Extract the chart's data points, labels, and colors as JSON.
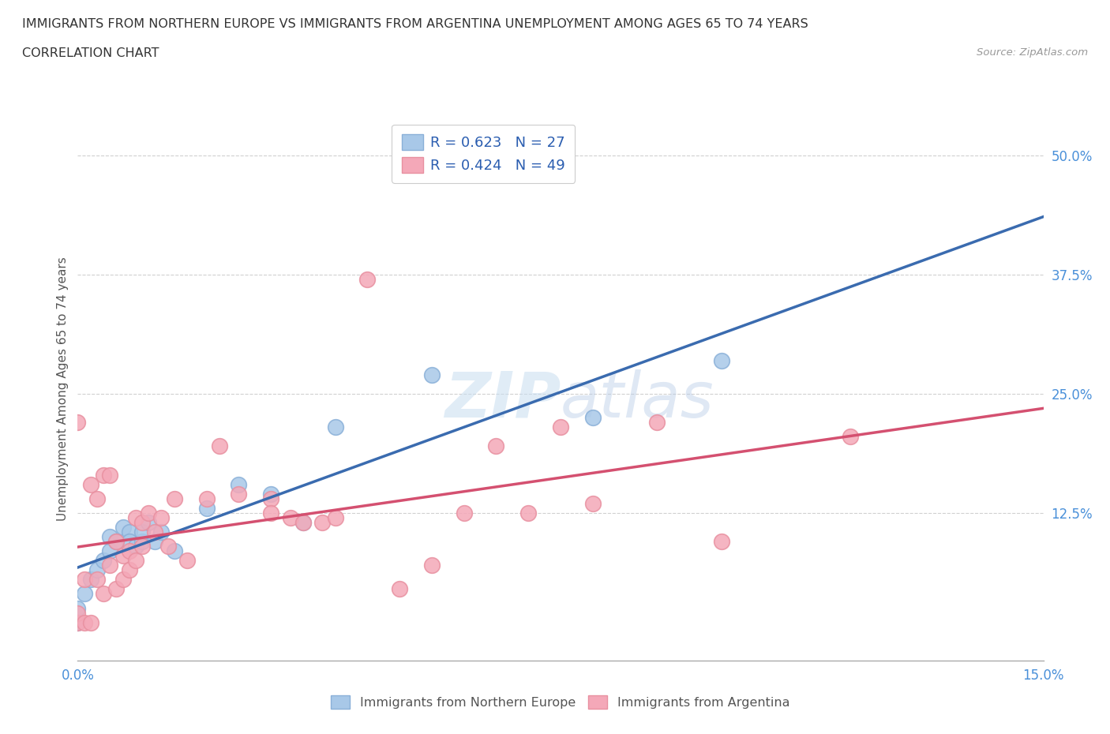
{
  "title_line1": "IMMIGRANTS FROM NORTHERN EUROPE VS IMMIGRANTS FROM ARGENTINA UNEMPLOYMENT AMONG AGES 65 TO 74 YEARS",
  "title_line2": "CORRELATION CHART",
  "source": "Source: ZipAtlas.com",
  "ylabel": "Unemployment Among Ages 65 to 74 years",
  "xlim": [
    0.0,
    0.15
  ],
  "ylim": [
    -0.03,
    0.54
  ],
  "xticks": [
    0.0,
    0.025,
    0.05,
    0.075,
    0.1,
    0.125,
    0.15
  ],
  "ytick_positions": [
    0.0,
    0.125,
    0.25,
    0.375,
    0.5
  ],
  "ytick_labels": [
    "",
    "12.5%",
    "25.0%",
    "37.5%",
    "50.0%"
  ],
  "blue_R": 0.623,
  "blue_N": 27,
  "pink_R": 0.424,
  "pink_N": 49,
  "blue_color": "#a8c8e8",
  "pink_color": "#f4a8b8",
  "blue_edge_color": "#8ab0d8",
  "pink_edge_color": "#e890a0",
  "blue_line_color": "#3a6baf",
  "pink_line_color": "#d45070",
  "legend_label_blue": "Immigrants from Northern Europe",
  "legend_label_pink": "Immigrants from Argentina",
  "watermark": "ZIPatlas",
  "blue_points_x": [
    0.0,
    0.0,
    0.001,
    0.002,
    0.003,
    0.004,
    0.005,
    0.005,
    0.006,
    0.007,
    0.008,
    0.008,
    0.009,
    0.01,
    0.01,
    0.011,
    0.012,
    0.013,
    0.015,
    0.02,
    0.025,
    0.03,
    0.035,
    0.04,
    0.055,
    0.08,
    0.1
  ],
  "blue_points_y": [
    0.01,
    0.025,
    0.04,
    0.055,
    0.065,
    0.075,
    0.085,
    0.1,
    0.095,
    0.11,
    0.105,
    0.095,
    0.09,
    0.095,
    0.105,
    0.115,
    0.095,
    0.105,
    0.085,
    0.13,
    0.155,
    0.145,
    0.115,
    0.215,
    0.27,
    0.225,
    0.285
  ],
  "pink_points_x": [
    0.0,
    0.0,
    0.0,
    0.001,
    0.001,
    0.002,
    0.002,
    0.003,
    0.003,
    0.004,
    0.004,
    0.005,
    0.005,
    0.006,
    0.006,
    0.007,
    0.007,
    0.008,
    0.008,
    0.009,
    0.009,
    0.01,
    0.01,
    0.011,
    0.012,
    0.013,
    0.014,
    0.015,
    0.017,
    0.02,
    0.022,
    0.025,
    0.03,
    0.03,
    0.033,
    0.035,
    0.038,
    0.04,
    0.045,
    0.05,
    0.055,
    0.06,
    0.065,
    0.07,
    0.075,
    0.08,
    0.09,
    0.1,
    0.12
  ],
  "pink_points_y": [
    0.01,
    0.02,
    0.22,
    0.01,
    0.055,
    0.01,
    0.155,
    0.055,
    0.14,
    0.04,
    0.165,
    0.07,
    0.165,
    0.045,
    0.095,
    0.055,
    0.08,
    0.065,
    0.085,
    0.075,
    0.12,
    0.09,
    0.115,
    0.125,
    0.105,
    0.12,
    0.09,
    0.14,
    0.075,
    0.14,
    0.195,
    0.145,
    0.14,
    0.125,
    0.12,
    0.115,
    0.115,
    0.12,
    0.37,
    0.045,
    0.07,
    0.125,
    0.195,
    0.125,
    0.215,
    0.135,
    0.22,
    0.095,
    0.205
  ],
  "grid_color": "#d0d0d0",
  "bg_color": "#ffffff"
}
